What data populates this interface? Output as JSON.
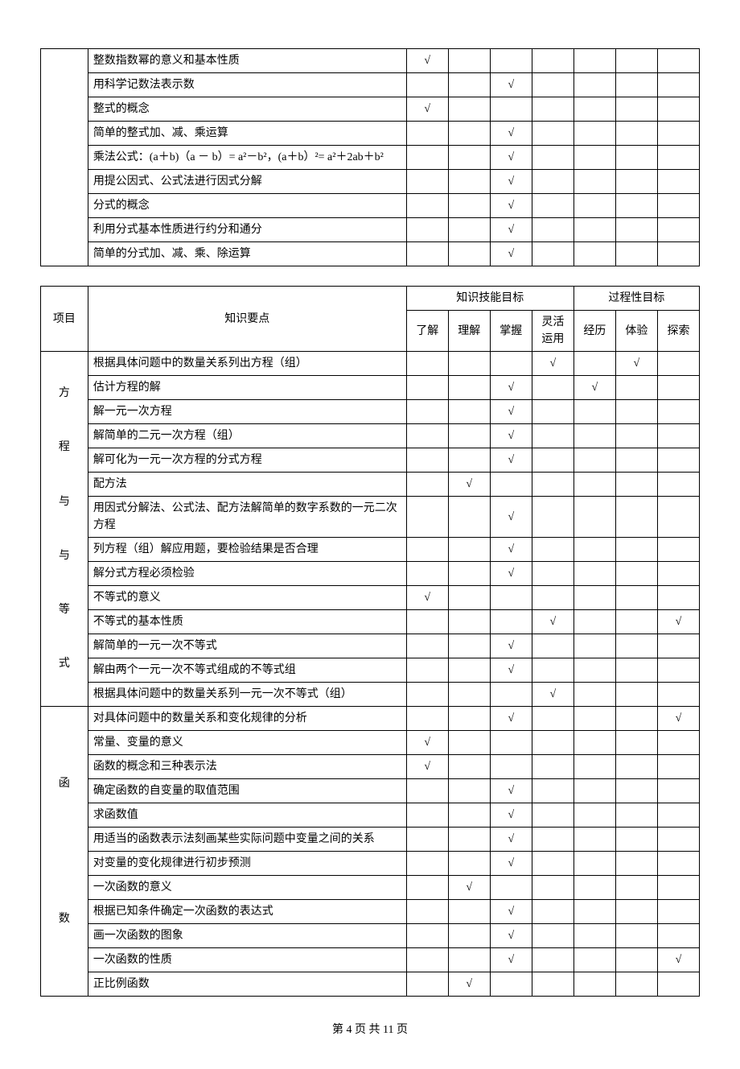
{
  "check_mark": "√",
  "table1": {
    "rows": [
      {
        "topic": "整数指数幂的意义和基本性质",
        "marks": [
          "√",
          "",
          "",
          "",
          "",
          "",
          ""
        ]
      },
      {
        "topic": "用科学记数法表示数",
        "marks": [
          "",
          "",
          "√",
          "",
          "",
          "",
          ""
        ]
      },
      {
        "topic": "整式的概念",
        "marks": [
          "√",
          "",
          "",
          "",
          "",
          "",
          ""
        ]
      },
      {
        "topic": "简单的整式加、减、乘运算",
        "marks": [
          "",
          "",
          "√",
          "",
          "",
          "",
          ""
        ]
      },
      {
        "topic": "乘法公式：(a＋b)（a － b）= a²－b²，(a＋b）²= a²＋2ab＋b²",
        "marks": [
          "",
          "",
          "√",
          "",
          "",
          "",
          ""
        ]
      },
      {
        "topic": "用提公因式、公式法进行因式分解",
        "marks": [
          "",
          "",
          "√",
          "",
          "",
          "",
          ""
        ]
      },
      {
        "topic": "分式的概念",
        "marks": [
          "",
          "",
          "√",
          "",
          "",
          "",
          ""
        ]
      },
      {
        "topic": "利用分式基本性质进行约分和通分",
        "marks": [
          "",
          "",
          "√",
          "",
          "",
          "",
          ""
        ]
      },
      {
        "topic": "简单的分式加、减、乘、除运算",
        "marks": [
          "",
          "",
          "√",
          "",
          "",
          "",
          ""
        ]
      }
    ]
  },
  "table2": {
    "headers": {
      "project": "项目",
      "topic": "知识要点",
      "skill_group": "知识技能目标",
      "process_group": "过程性目标",
      "cols": [
        "了解",
        "理解",
        "掌握",
        "灵活运用",
        "经历",
        "体验",
        "探索"
      ]
    },
    "sections": [
      {
        "label": "方\n\n程\n\n与\n\n与\n\n等\n\n式",
        "rows": [
          {
            "topic": "根据具体问题中的数量关系列出方程（组）",
            "marks": [
              "",
              "",
              "",
              "√",
              "",
              "√",
              ""
            ]
          },
          {
            "topic": "估计方程的解",
            "marks": [
              "",
              "",
              "√",
              "",
              "√",
              "",
              ""
            ]
          },
          {
            "topic": "解一元一次方程",
            "marks": [
              "",
              "",
              "√",
              "",
              "",
              "",
              ""
            ]
          },
          {
            "topic": "解简单的二元一次方程（组）",
            "marks": [
              "",
              "",
              "√",
              "",
              "",
              "",
              ""
            ]
          },
          {
            "topic": "解可化为一元一次方程的分式方程",
            "marks": [
              "",
              "",
              "√",
              "",
              "",
              "",
              ""
            ]
          },
          {
            "topic": "配方法",
            "marks": [
              "",
              "√",
              "",
              "",
              "",
              "",
              ""
            ]
          },
          {
            "topic": "用因式分解法、公式法、配方法解简单的数字系数的一元二次方程",
            "marks": [
              "",
              "",
              "√",
              "",
              "",
              "",
              ""
            ]
          },
          {
            "topic": "列方程（组）解应用题，要检验结果是否合理",
            "marks": [
              "",
              "",
              "√",
              "",
              "",
              "",
              ""
            ]
          },
          {
            "topic": "解分式方程必须检验",
            "marks": [
              "",
              "",
              "√",
              "",
              "",
              "",
              ""
            ]
          },
          {
            "topic": "不等式的意义",
            "marks": [
              "√",
              "",
              "",
              "",
              "",
              "",
              ""
            ]
          },
          {
            "topic": "不等式的基本性质",
            "marks": [
              "",
              "",
              "",
              "√",
              "",
              "",
              "√"
            ]
          },
          {
            "topic": "解简单的一元一次不等式",
            "marks": [
              "",
              "",
              "√",
              "",
              "",
              "",
              ""
            ]
          },
          {
            "topic": "解由两个一元一次不等式组成的不等式组",
            "marks": [
              "",
              "",
              "√",
              "",
              "",
              "",
              ""
            ]
          },
          {
            "topic": "根据具体问题中的数量关系列一元一次不等式（组）",
            "marks": [
              "",
              "",
              "",
              "√",
              "",
              "",
              ""
            ]
          }
        ]
      },
      {
        "label": "函\n\n\n\n\n数",
        "rows": [
          {
            "topic": "对具体问题中的数量关系和变化规律的分析",
            "marks": [
              "",
              "",
              "√",
              "",
              "",
              "",
              "√"
            ]
          },
          {
            "topic": "常量、变量的意义",
            "marks": [
              "√",
              "",
              "",
              "",
              "",
              "",
              ""
            ]
          },
          {
            "topic": "函数的概念和三种表示法",
            "marks": [
              "√",
              "",
              "",
              "",
              "",
              "",
              ""
            ]
          },
          {
            "topic": "确定函数的自变量的取值范围",
            "marks": [
              "",
              "",
              "√",
              "",
              "",
              "",
              ""
            ]
          },
          {
            "topic": "求函数值",
            "marks": [
              "",
              "",
              "√",
              "",
              "",
              "",
              ""
            ]
          },
          {
            "topic": "用适当的函数表示法刻画某些实际问题中变量之间的关系",
            "marks": [
              "",
              "",
              "√",
              "",
              "",
              "",
              ""
            ]
          },
          {
            "topic": "对变量的变化规律进行初步预测",
            "marks": [
              "",
              "",
              "√",
              "",
              "",
              "",
              ""
            ]
          },
          {
            "topic": "一次函数的意义",
            "marks": [
              "",
              "√",
              "",
              "",
              "",
              "",
              ""
            ]
          },
          {
            "topic": "根据已知条件确定一次函数的表达式",
            "marks": [
              "",
              "",
              "√",
              "",
              "",
              "",
              ""
            ]
          },
          {
            "topic": "画一次函数的图象",
            "marks": [
              "",
              "",
              "√",
              "",
              "",
              "",
              ""
            ]
          },
          {
            "topic": "一次函数的性质",
            "marks": [
              "",
              "",
              "√",
              "",
              "",
              "",
              "√"
            ]
          },
          {
            "topic": "正比例函数",
            "marks": [
              "",
              "√",
              "",
              "",
              "",
              "",
              ""
            ]
          }
        ]
      }
    ]
  },
  "footer": "第 4 页 共 11 页"
}
